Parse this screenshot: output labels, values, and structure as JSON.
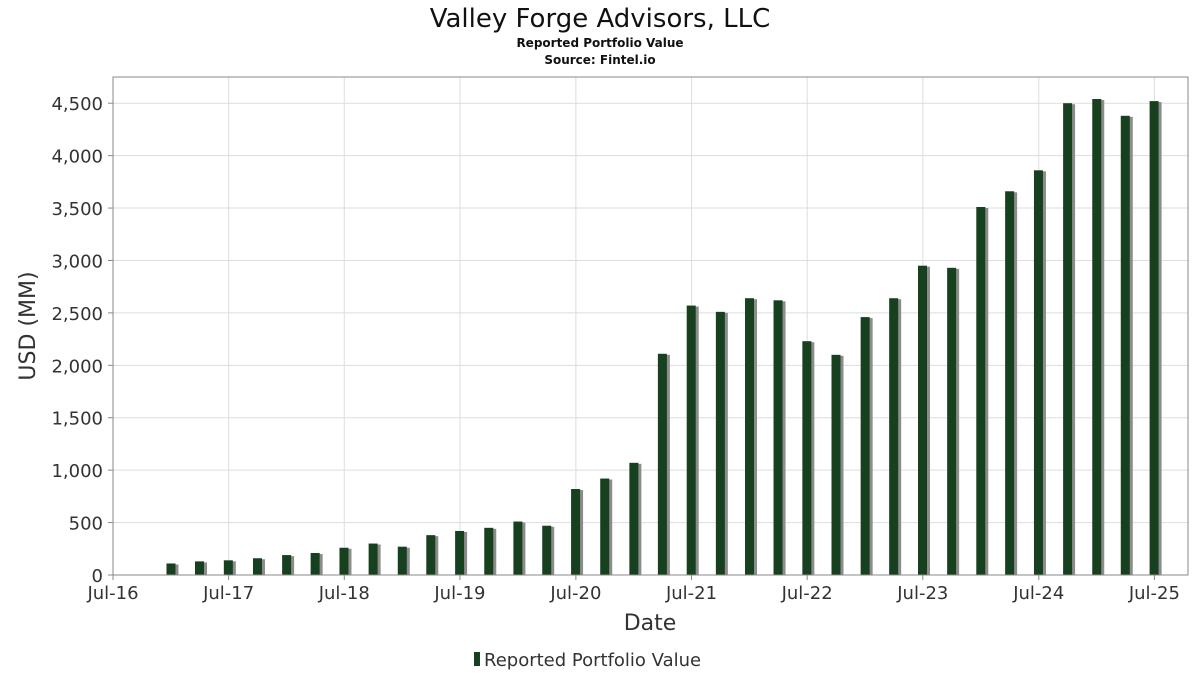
{
  "chart_data": {
    "type": "bar",
    "title": "Valley Forge Advisors, LLC",
    "subtitle": "Reported Portfolio Value",
    "source": "Source: Fintel.io",
    "xlabel": "Date",
    "ylabel": "USD (MM)",
    "ylim": [
      0,
      4750
    ],
    "yticks": [
      0,
      500,
      1000,
      1500,
      2000,
      2500,
      3000,
      3500,
      4000,
      4500
    ],
    "ytick_labels": [
      "0",
      "500",
      "1,000",
      "1,500",
      "2,000",
      "2,500",
      "3,000",
      "3,500",
      "4,000",
      "4,500"
    ],
    "xlim": [
      "2016-07-01",
      "2025-10-15"
    ],
    "xticks": [
      "2016-07-01",
      "2017-07-01",
      "2018-07-01",
      "2019-07-01",
      "2020-07-01",
      "2021-07-01",
      "2022-07-01",
      "2023-07-01",
      "2024-07-01",
      "2025-07-01"
    ],
    "xtick_labels": [
      "Jul-16",
      "Jul-17",
      "Jul-18",
      "Jul-19",
      "Jul-20",
      "Jul-21",
      "Jul-22",
      "Jul-23",
      "Jul-24",
      "Jul-25"
    ],
    "grid": true,
    "legend_position": "bottom-center",
    "colors": {
      "bar": "#17401f",
      "bar_shadow": "#8c8c8c"
    },
    "series": [
      {
        "name": "Reported Portfolio Value",
        "points": [
          {
            "x": "2016-12-31",
            "y": 110
          },
          {
            "x": "2017-03-31",
            "y": 130
          },
          {
            "x": "2017-06-30",
            "y": 140
          },
          {
            "x": "2017-09-30",
            "y": 160
          },
          {
            "x": "2017-12-31",
            "y": 190
          },
          {
            "x": "2018-03-31",
            "y": 210
          },
          {
            "x": "2018-06-30",
            "y": 260
          },
          {
            "x": "2018-09-30",
            "y": 300
          },
          {
            "x": "2018-12-31",
            "y": 270
          },
          {
            "x": "2019-03-31",
            "y": 380
          },
          {
            "x": "2019-06-30",
            "y": 420
          },
          {
            "x": "2019-09-30",
            "y": 450
          },
          {
            "x": "2019-12-31",
            "y": 510
          },
          {
            "x": "2020-03-31",
            "y": 470
          },
          {
            "x": "2020-06-30",
            "y": 820
          },
          {
            "x": "2020-09-30",
            "y": 920
          },
          {
            "x": "2020-12-31",
            "y": 1070
          },
          {
            "x": "2021-03-31",
            "y": 2110
          },
          {
            "x": "2021-06-30",
            "y": 2570
          },
          {
            "x": "2021-09-30",
            "y": 2510
          },
          {
            "x": "2021-12-31",
            "y": 2640
          },
          {
            "x": "2022-03-31",
            "y": 2620
          },
          {
            "x": "2022-06-30",
            "y": 2230
          },
          {
            "x": "2022-09-30",
            "y": 2100
          },
          {
            "x": "2022-12-31",
            "y": 2460
          },
          {
            "x": "2023-03-31",
            "y": 2640
          },
          {
            "x": "2023-06-30",
            "y": 2950
          },
          {
            "x": "2023-09-30",
            "y": 2930
          },
          {
            "x": "2023-12-31",
            "y": 3510
          },
          {
            "x": "2024-03-31",
            "y": 3660
          },
          {
            "x": "2024-06-30",
            "y": 3860
          },
          {
            "x": "2024-09-30",
            "y": 4500
          },
          {
            "x": "2024-12-31",
            "y": 4540
          },
          {
            "x": "2025-03-31",
            "y": 4380
          },
          {
            "x": "2025-06-30",
            "y": 4520
          }
        ]
      }
    ]
  }
}
